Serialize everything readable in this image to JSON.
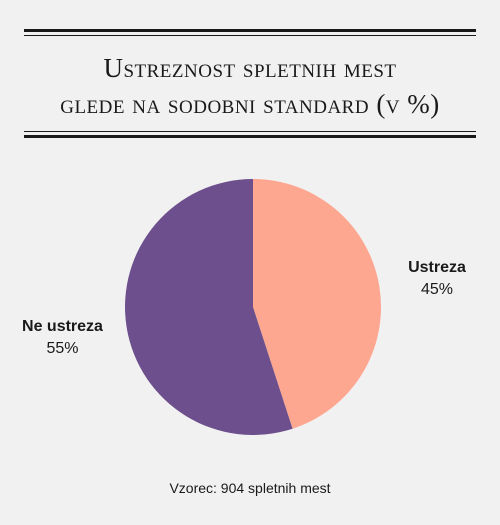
{
  "chart_data": {
    "type": "pie",
    "title_lines": [
      "Ustreznost spletnih mest",
      "glede na sodobni standard (v %)"
    ],
    "slices": [
      {
        "label": "Ustreza",
        "value": 45,
        "value_label": "45%",
        "color": "#fda791"
      },
      {
        "label": "Ne ustreza",
        "value": 55,
        "value_label": "55%",
        "color": "#6c4f8c"
      }
    ],
    "note": "Vzorec: 904 spletnih mest"
  }
}
